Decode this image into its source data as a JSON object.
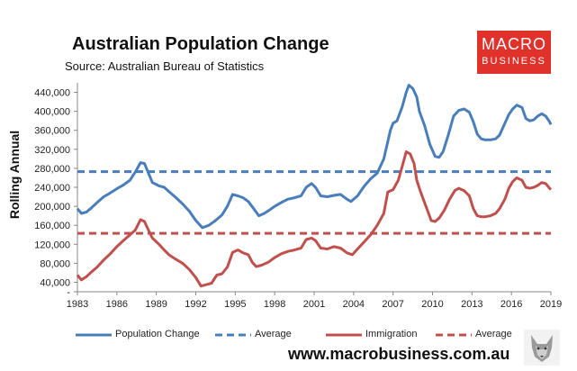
{
  "header": {
    "title": "Australian Population Change",
    "subtitle": "Source: Australian Bureau of Statistics"
  },
  "logo": {
    "line1": "MACRO",
    "line2": "BUSINESS"
  },
  "footer": {
    "website": "www.macrobusiness.com.au",
    "mascot_icon": "wolf-icon"
  },
  "colors": {
    "population": "#4a7ebb",
    "immigration": "#c0504d",
    "axis": "#888888"
  },
  "chart_data": {
    "type": "line",
    "title": "Australian Population Change",
    "subtitle": "Source: Australian Bureau of Statistics",
    "ylabel": "Rolling Annual",
    "xlabel": "",
    "xlim": [
      1983,
      2019
    ],
    "ylim": [
      20000,
      460000
    ],
    "x_ticks": [
      "1983",
      "1986",
      "1989",
      "1992",
      "1995",
      "1998",
      "2001",
      "2004",
      "2007",
      "2010",
      "2013",
      "2016",
      "2019"
    ],
    "y_ticks": [
      {
        "value": 20000,
        "label": "-"
      },
      {
        "value": 40000,
        "label": "40,000"
      },
      {
        "value": 80000,
        "label": "80,000"
      },
      {
        "value": 120000,
        "label": "120,000"
      },
      {
        "value": 160000,
        "label": "160,000"
      },
      {
        "value": 200000,
        "label": "200,000"
      },
      {
        "value": 240000,
        "label": "240,000"
      },
      {
        "value": 280000,
        "label": "280,000"
      },
      {
        "value": 320000,
        "label": "320,000"
      },
      {
        "value": 360000,
        "label": "360,000"
      },
      {
        "value": 400000,
        "label": "400,000"
      },
      {
        "value": 440000,
        "label": "440,000"
      }
    ],
    "grid": false,
    "legend_position": "bottom",
    "series": [
      {
        "name": "Population Change",
        "style": "solid",
        "color": "#4a7ebb",
        "points": [
          [
            1983.0,
            195000
          ],
          [
            1983.3,
            185000
          ],
          [
            1983.7,
            188000
          ],
          [
            1984.0,
            195000
          ],
          [
            1984.5,
            208000
          ],
          [
            1985.0,
            220000
          ],
          [
            1985.5,
            228000
          ],
          [
            1986.0,
            237000
          ],
          [
            1986.5,
            245000
          ],
          [
            1987.0,
            255000
          ],
          [
            1987.4,
            272000
          ],
          [
            1987.8,
            292000
          ],
          [
            1988.1,
            290000
          ],
          [
            1988.4,
            270000
          ],
          [
            1988.7,
            250000
          ],
          [
            1989.2,
            243000
          ],
          [
            1989.6,
            240000
          ],
          [
            1990.0,
            230000
          ],
          [
            1990.5,
            218000
          ],
          [
            1991.0,
            205000
          ],
          [
            1991.5,
            190000
          ],
          [
            1992.0,
            170000
          ],
          [
            1992.5,
            155000
          ],
          [
            1993.0,
            160000
          ],
          [
            1993.5,
            170000
          ],
          [
            1994.0,
            182000
          ],
          [
            1994.4,
            200000
          ],
          [
            1994.8,
            225000
          ],
          [
            1995.2,
            222000
          ],
          [
            1995.6,
            218000
          ],
          [
            1996.0,
            210000
          ],
          [
            1996.4,
            195000
          ],
          [
            1996.8,
            180000
          ],
          [
            1997.2,
            185000
          ],
          [
            1997.6,
            192000
          ],
          [
            1998.0,
            200000
          ],
          [
            1998.5,
            208000
          ],
          [
            1999.0,
            215000
          ],
          [
            1999.5,
            218000
          ],
          [
            2000.0,
            222000
          ],
          [
            2000.4,
            240000
          ],
          [
            2000.8,
            248000
          ],
          [
            2001.1,
            240000
          ],
          [
            2001.5,
            222000
          ],
          [
            2002.0,
            220000
          ],
          [
            2002.5,
            223000
          ],
          [
            2003.0,
            225000
          ],
          [
            2003.5,
            215000
          ],
          [
            2003.8,
            210000
          ],
          [
            2004.3,
            222000
          ],
          [
            2004.8,
            242000
          ],
          [
            2005.3,
            258000
          ],
          [
            2005.8,
            270000
          ],
          [
            2006.3,
            300000
          ],
          [
            2006.8,
            360000
          ],
          [
            2007.0,
            375000
          ],
          [
            2007.3,
            380000
          ],
          [
            2007.7,
            410000
          ],
          [
            2008.0,
            440000
          ],
          [
            2008.2,
            455000
          ],
          [
            2008.5,
            448000
          ],
          [
            2008.8,
            430000
          ],
          [
            2009.0,
            400000
          ],
          [
            2009.4,
            370000
          ],
          [
            2009.8,
            330000
          ],
          [
            2010.2,
            305000
          ],
          [
            2010.5,
            303000
          ],
          [
            2010.8,
            315000
          ],
          [
            2011.2,
            350000
          ],
          [
            2011.6,
            390000
          ],
          [
            2012.0,
            402000
          ],
          [
            2012.4,
            405000
          ],
          [
            2012.8,
            398000
          ],
          [
            2013.1,
            378000
          ],
          [
            2013.4,
            352000
          ],
          [
            2013.7,
            342000
          ],
          [
            2014.0,
            340000
          ],
          [
            2014.4,
            340000
          ],
          [
            2014.8,
            342000
          ],
          [
            2015.1,
            350000
          ],
          [
            2015.5,
            375000
          ],
          [
            2015.8,
            393000
          ],
          [
            2016.1,
            405000
          ],
          [
            2016.4,
            413000
          ],
          [
            2016.8,
            408000
          ],
          [
            2017.1,
            385000
          ],
          [
            2017.4,
            380000
          ],
          [
            2017.7,
            382000
          ],
          [
            2018.0,
            390000
          ],
          [
            2018.3,
            395000
          ],
          [
            2018.6,
            390000
          ],
          [
            2018.9,
            378000
          ],
          [
            2019.0,
            372000
          ]
        ]
      },
      {
        "name": "Average",
        "style": "dashed",
        "color": "#4a7ebb",
        "points": [
          [
            1983.0,
            273000
          ],
          [
            2019.0,
            273000
          ]
        ]
      },
      {
        "name": "Immigration",
        "style": "solid",
        "color": "#c0504d",
        "points": [
          [
            1983.0,
            55000
          ],
          [
            1983.3,
            45000
          ],
          [
            1983.7,
            52000
          ],
          [
            1984.0,
            60000
          ],
          [
            1984.5,
            72000
          ],
          [
            1985.0,
            87000
          ],
          [
            1985.5,
            100000
          ],
          [
            1986.0,
            115000
          ],
          [
            1986.5,
            128000
          ],
          [
            1987.0,
            140000
          ],
          [
            1987.4,
            150000
          ],
          [
            1987.8,
            172000
          ],
          [
            1988.1,
            168000
          ],
          [
            1988.4,
            150000
          ],
          [
            1988.7,
            133000
          ],
          [
            1989.2,
            120000
          ],
          [
            1989.6,
            108000
          ],
          [
            1990.0,
            97000
          ],
          [
            1990.5,
            88000
          ],
          [
            1991.0,
            80000
          ],
          [
            1991.5,
            67000
          ],
          [
            1992.0,
            50000
          ],
          [
            1992.4,
            32000
          ],
          [
            1992.8,
            35000
          ],
          [
            1993.2,
            38000
          ],
          [
            1993.6,
            55000
          ],
          [
            1994.0,
            58000
          ],
          [
            1994.4,
            72000
          ],
          [
            1994.8,
            103000
          ],
          [
            1995.2,
            108000
          ],
          [
            1995.6,
            102000
          ],
          [
            1996.0,
            98000
          ],
          [
            1996.3,
            82000
          ],
          [
            1996.6,
            73000
          ],
          [
            1997.0,
            76000
          ],
          [
            1997.5,
            82000
          ],
          [
            1998.0,
            92000
          ],
          [
            1998.5,
            100000
          ],
          [
            1999.0,
            105000
          ],
          [
            1999.5,
            108000
          ],
          [
            2000.0,
            112000
          ],
          [
            2000.4,
            130000
          ],
          [
            2000.8,
            133000
          ],
          [
            2001.1,
            128000
          ],
          [
            2001.5,
            112000
          ],
          [
            2002.0,
            110000
          ],
          [
            2002.5,
            115000
          ],
          [
            2003.0,
            112000
          ],
          [
            2003.5,
            102000
          ],
          [
            2003.9,
            98000
          ],
          [
            2004.3,
            110000
          ],
          [
            2004.8,
            125000
          ],
          [
            2005.3,
            140000
          ],
          [
            2005.8,
            160000
          ],
          [
            2006.3,
            185000
          ],
          [
            2006.6,
            230000
          ],
          [
            2007.0,
            235000
          ],
          [
            2007.4,
            255000
          ],
          [
            2007.8,
            295000
          ],
          [
            2008.0,
            315000
          ],
          [
            2008.3,
            310000
          ],
          [
            2008.6,
            290000
          ],
          [
            2008.8,
            255000
          ],
          [
            2009.1,
            230000
          ],
          [
            2009.5,
            200000
          ],
          [
            2009.9,
            170000
          ],
          [
            2010.2,
            168000
          ],
          [
            2010.5,
            175000
          ],
          [
            2010.9,
            192000
          ],
          [
            2011.3,
            215000
          ],
          [
            2011.7,
            233000
          ],
          [
            2012.0,
            238000
          ],
          [
            2012.4,
            233000
          ],
          [
            2012.8,
            222000
          ],
          [
            2013.1,
            195000
          ],
          [
            2013.4,
            180000
          ],
          [
            2013.7,
            178000
          ],
          [
            2014.0,
            178000
          ],
          [
            2014.4,
            180000
          ],
          [
            2014.8,
            185000
          ],
          [
            2015.1,
            195000
          ],
          [
            2015.5,
            215000
          ],
          [
            2015.8,
            238000
          ],
          [
            2016.1,
            252000
          ],
          [
            2016.4,
            260000
          ],
          [
            2016.8,
            255000
          ],
          [
            2017.1,
            240000
          ],
          [
            2017.4,
            238000
          ],
          [
            2017.7,
            240000
          ],
          [
            2018.0,
            244000
          ],
          [
            2018.3,
            250000
          ],
          [
            2018.6,
            248000
          ],
          [
            2018.9,
            238000
          ],
          [
            2019.0,
            235000
          ]
        ]
      },
      {
        "name": "Average",
        "style": "dashed",
        "color": "#c0504d",
        "points": [
          [
            1983.0,
            143000
          ],
          [
            2019.0,
            143000
          ]
        ]
      }
    ]
  }
}
